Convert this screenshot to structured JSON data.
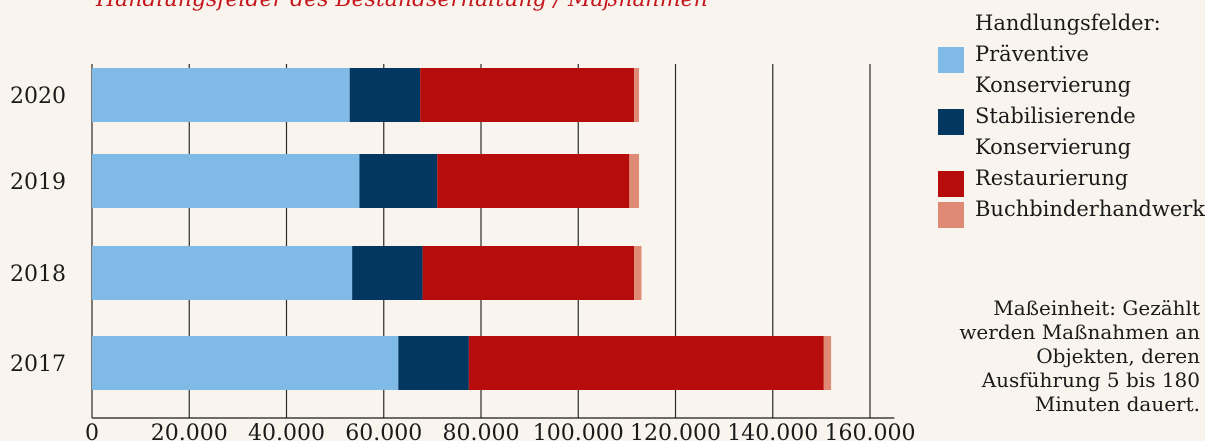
{
  "header": {
    "cut_title": "Handlungsfelder des Bestandserhaltung / Maßnahmen"
  },
  "legend": {
    "title": "Handlungsfelder:",
    "items": [
      {
        "label": "Präventive Konservierung",
        "color": "#80bbe7"
      },
      {
        "label": "Stabilisierende Konservierung",
        "color": "#013761"
      },
      {
        "label": "Restaurierung",
        "color": "#b70c0c"
      },
      {
        "label": "Buchbinderhandwerk",
        "color": "#de8a75"
      }
    ]
  },
  "note": "Maßeinheit: Gezählt werden Maßnahmen an Objekten, deren Ausführung 5 bis 180 Minuten dauert.",
  "chart_data": {
    "type": "bar",
    "orientation": "horizontal",
    "stacked": true,
    "categories": [
      "2020",
      "2019",
      "2018",
      "2017"
    ],
    "series": [
      {
        "name": "Präventive Konservierung",
        "color": "#80bbe7",
        "values": [
          53000,
          55000,
          53500,
          63000
        ]
      },
      {
        "name": "Stabilisierende Konservierung",
        "color": "#013761",
        "values": [
          14500,
          16000,
          14500,
          14500
        ]
      },
      {
        "name": "Restaurierung",
        "color": "#b70c0c",
        "values": [
          44000,
          39500,
          43500,
          73000
        ]
      },
      {
        "name": "Buchbinderhandwerk",
        "color": "#de8a75",
        "values": [
          1000,
          2000,
          1500,
          1500
        ]
      }
    ],
    "xlim": [
      0,
      165000
    ],
    "xticks": [
      0,
      20000,
      40000,
      60000,
      80000,
      100000,
      120000,
      140000,
      160000
    ],
    "xtick_labels": [
      "0",
      "20.000",
      "40.000",
      "60.000",
      "80.000",
      "100.000",
      "120.000",
      "140.000",
      "160.000"
    ],
    "grid": "vertical",
    "legend_position": "right"
  }
}
